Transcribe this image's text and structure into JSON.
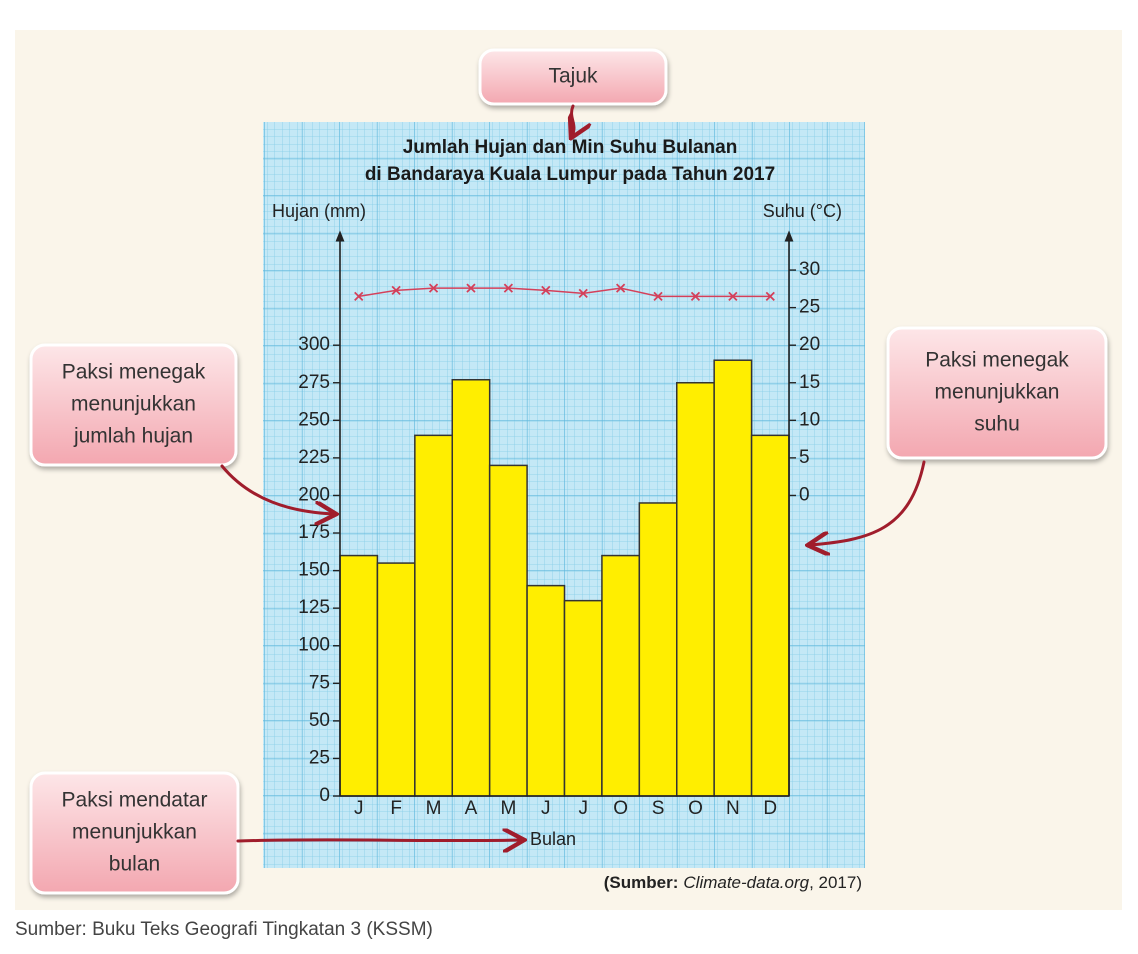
{
  "chart_data": {
    "type": "combo",
    "title": [
      "Jumlah Hujan dan Min Suhu Bulanan",
      "di Bandaraya Kuala Lumpur pada Tahun 2017"
    ],
    "ylabel": "Hujan (mm)",
    "y2label": "Suhu (°C)",
    "xlabel": "Bulan",
    "categories": [
      "J",
      "F",
      "M",
      "A",
      "M",
      "J",
      "J",
      "O",
      "S",
      "O",
      "N",
      "D"
    ],
    "series": [
      {
        "type": "bar",
        "color": "#ffee00",
        "values": [
          160,
          155,
          240,
          277,
          220,
          140,
          130,
          160,
          195,
          275,
          290,
          240
        ]
      },
      {
        "type": "line",
        "axis": "y2",
        "color": "#d4405a",
        "values": [
          26.5,
          27.3,
          27.6,
          27.6,
          27.6,
          27.3,
          26.9,
          27.6,
          26.5,
          26.5,
          26.5,
          26.5
        ]
      }
    ],
    "ylim": [
      0,
      370
    ],
    "yticks": [
      0,
      25,
      50,
      75,
      100,
      125,
      150,
      175,
      200,
      225,
      250,
      275,
      300
    ],
    "y2lim": [
      -40,
      34
    ],
    "y2ticks": [
      0,
      5,
      10,
      15,
      20,
      25,
      30
    ],
    "source": [
      "(Sumber:",
      "Climate-data.org",
      ", 2017)"
    ]
  },
  "callouts": [
    {
      "lines": [
        "Tajuk"
      ]
    },
    {
      "lines": [
        "Paksi menegak",
        "menunjukkan",
        "jumlah hujan"
      ]
    },
    {
      "lines": [
        "Paksi menegak",
        "menunjukkan",
        "suhu"
      ]
    },
    {
      "lines": [
        "Paksi mendatar",
        "menunjukkan",
        "bulan"
      ]
    }
  ],
  "footer": "Sumber: Buku Teks Geografi Tingkatan 3 (KSSM)"
}
